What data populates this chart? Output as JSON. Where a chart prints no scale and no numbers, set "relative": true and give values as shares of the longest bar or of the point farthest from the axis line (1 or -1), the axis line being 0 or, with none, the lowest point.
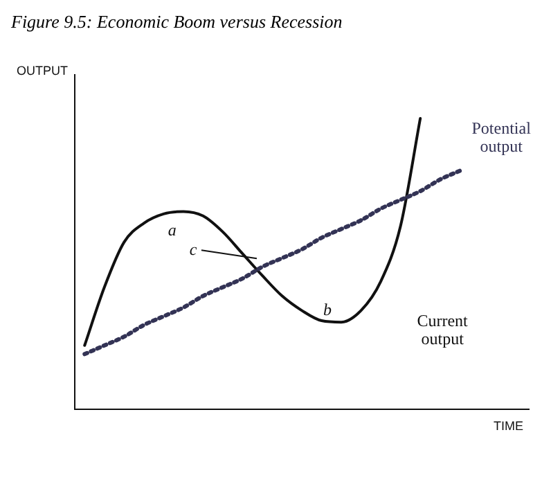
{
  "chart_data": {
    "type": "line",
    "title": "Figure 9.5: Economic Boom versus Recession",
    "xlabel": "TIME",
    "ylabel": "OUTPUT",
    "relative": true,
    "marker": "none",
    "legend": false,
    "grid": false,
    "categories": [
      null,
      null,
      null,
      null,
      null,
      null,
      null,
      null,
      null,
      null,
      null,
      null,
      null,
      null,
      null,
      null,
      null,
      null,
      null,
      null,
      null,
      null,
      null
    ],
    "series": [
      {
        "name": "Potential output",
        "color": "#333355",
        "line_style": "dotted",
        "values": [
          0.19,
          0.22,
          0.25,
          0.29,
          0.32,
          0.35,
          0.39,
          0.42,
          0.45,
          0.49,
          0.52,
          0.55,
          0.59,
          0.62,
          0.65,
          0.69,
          0.72,
          0.75,
          0.79,
          0.82,
          null,
          null,
          null
        ]
      },
      {
        "name": "Current output",
        "color": "#111111",
        "line_style": "solid",
        "values": [
          0.22,
          0.42,
          0.575,
          0.64,
          0.672,
          0.68,
          0.665,
          0.61,
          0.535,
          0.46,
          0.39,
          0.34,
          0.305,
          0.3,
          0.34,
          0.44,
          0.63,
          1.0,
          null,
          null,
          null,
          null,
          null
        ]
      }
    ],
    "annotations": [
      "a",
      "b",
      "c"
    ]
  }
}
